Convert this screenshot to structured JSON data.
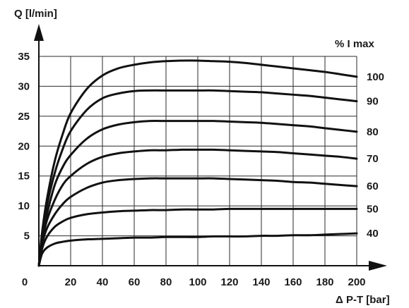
{
  "chart_data": {
    "type": "line",
    "title": "",
    "ylabel": "Q [l/min]",
    "xlabel": "Δ P-T [bar]",
    "legend_title": "% I max",
    "legend_placement": "right",
    "xlim": [
      0,
      200
    ],
    "ylim": [
      0,
      35
    ],
    "x_ticks": [
      "0",
      "20",
      "40",
      "60",
      "80",
      "100",
      "120",
      "140",
      "160",
      "180",
      "200"
    ],
    "y_ticks": [
      "5",
      "10",
      "15",
      "20",
      "25",
      "30",
      "35"
    ],
    "grid": true,
    "x": [
      0,
      2,
      5,
      10,
      15,
      20,
      30,
      40,
      50,
      60,
      70,
      80,
      90,
      100,
      110,
      120,
      130,
      140,
      150,
      160,
      170,
      180,
      190,
      200
    ],
    "series": [
      {
        "name": "100",
        "values": [
          0,
          5.5,
          11,
          17.5,
          22,
          25.5,
          29.5,
          31.8,
          33.0,
          33.6,
          34.0,
          34.2,
          34.3,
          34.3,
          34.2,
          34.1,
          33.9,
          33.6,
          33.3,
          33.0,
          32.7,
          32.4,
          32.0,
          31.6
        ]
      },
      {
        "name": "90",
        "values": [
          0,
          5.0,
          10,
          15.5,
          19.5,
          22.5,
          26.0,
          28.0,
          28.8,
          29.2,
          29.3,
          29.3,
          29.3,
          29.3,
          29.3,
          29.2,
          29.1,
          29.0,
          28.8,
          28.6,
          28.4,
          28.1,
          27.8,
          27.5
        ]
      },
      {
        "name": "80",
        "values": [
          0,
          4.5,
          8.5,
          13.5,
          16.5,
          18.5,
          21.2,
          22.8,
          23.6,
          24.0,
          24.2,
          24.2,
          24.2,
          24.2,
          24.2,
          24.1,
          24.0,
          23.9,
          23.7,
          23.5,
          23.3,
          23.0,
          22.7,
          22.4
        ]
      },
      {
        "name": "70",
        "values": [
          0,
          4.0,
          7.5,
          11.0,
          13.5,
          15.0,
          17.0,
          18.2,
          18.8,
          19.1,
          19.3,
          19.3,
          19.4,
          19.4,
          19.4,
          19.3,
          19.2,
          19.1,
          19.0,
          18.8,
          18.6,
          18.4,
          18.2,
          17.9
        ]
      },
      {
        "name": "60",
        "values": [
          0,
          3.5,
          6.2,
          8.6,
          10.3,
          11.5,
          13.0,
          13.9,
          14.3,
          14.5,
          14.6,
          14.6,
          14.6,
          14.6,
          14.6,
          14.5,
          14.4,
          14.3,
          14.2,
          14.0,
          13.9,
          13.7,
          13.5,
          13.3
        ]
      },
      {
        "name": "50",
        "values": [
          0,
          2.8,
          4.8,
          6.5,
          7.4,
          8.0,
          8.6,
          8.9,
          9.1,
          9.2,
          9.3,
          9.3,
          9.4,
          9.4,
          9.4,
          9.5,
          9.5,
          9.5,
          9.5,
          9.5,
          9.5,
          9.5,
          9.5,
          9.5
        ]
      },
      {
        "name": "40",
        "values": [
          0,
          2.0,
          3.0,
          3.7,
          4.0,
          4.2,
          4.4,
          4.5,
          4.6,
          4.7,
          4.7,
          4.8,
          4.8,
          4.8,
          4.9,
          4.9,
          4.9,
          5.0,
          5.0,
          5.1,
          5.1,
          5.2,
          5.3,
          5.4
        ]
      }
    ]
  }
}
